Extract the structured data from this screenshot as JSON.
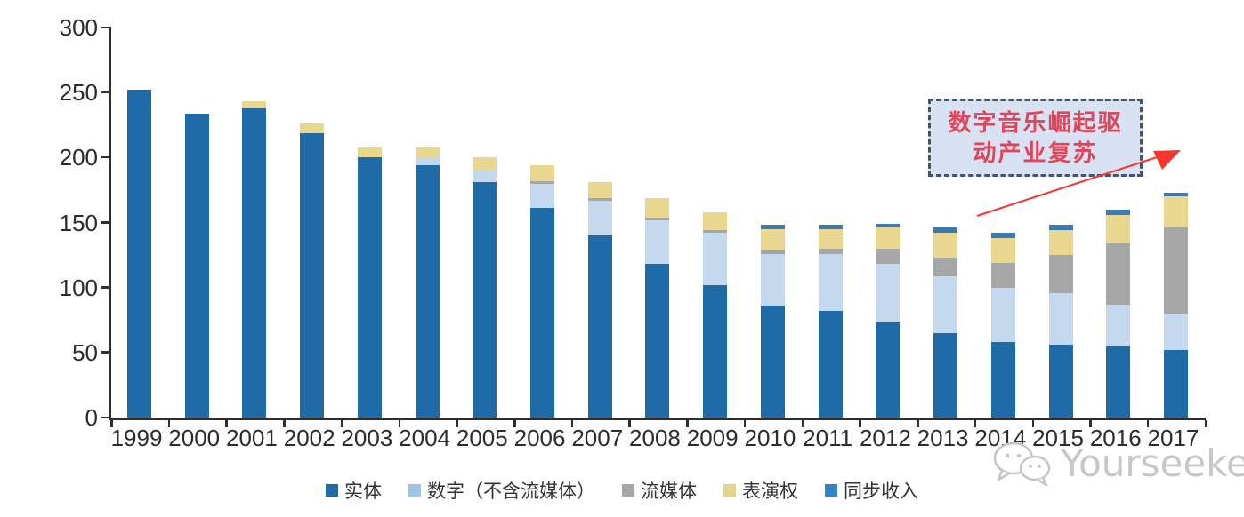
{
  "chart_data": {
    "type": "bar",
    "stacked": true,
    "title": "",
    "xlabel": "",
    "ylabel": "",
    "ylim": [
      0,
      300
    ],
    "yticks": [
      0,
      50,
      100,
      150,
      200,
      250,
      300
    ],
    "grid": false,
    "legend_position": "bottom",
    "years": [
      "1999",
      "2000",
      "2001",
      "2002",
      "2003",
      "2004",
      "2005",
      "2006",
      "2007",
      "2008",
      "2009",
      "2010",
      "2011",
      "2012",
      "2013",
      "2014",
      "2015",
      "2016",
      "2017"
    ],
    "series": [
      {
        "key": "physical",
        "name": "实体",
        "color": "#1f6ba8",
        "legend_color": "#1f6ba8",
        "values": [
          252,
          234,
          238,
          219,
          200,
          194,
          181,
          161,
          140,
          118,
          102,
          86,
          82,
          73,
          65,
          58,
          56,
          55,
          52
        ]
      },
      {
        "key": "digital-excl-streaming",
        "name": "数字（不含流媒体）",
        "color": "#c5d9ee",
        "legend_color": "#9dc3e6",
        "values": [
          0,
          0,
          0,
          0,
          0,
          6,
          10,
          19,
          27,
          34,
          40,
          40,
          44,
          45,
          44,
          42,
          40,
          32,
          28
        ]
      },
      {
        "key": "streaming",
        "name": "流媒体",
        "color": "#a6a6a6",
        "legend_color": "#a6a6a6",
        "values": [
          0,
          0,
          0,
          0,
          0,
          0,
          0,
          2,
          2,
          2,
          2,
          3,
          4,
          12,
          14,
          19,
          29,
          47,
          66
        ]
      },
      {
        "key": "performance-rights",
        "name": "表演权",
        "color": "#e9d78f",
        "legend_color": "#e4d48c",
        "values": [
          0,
          0,
          5,
          7,
          8,
          8,
          9,
          12,
          12,
          15,
          14,
          16,
          15,
          16,
          19,
          19,
          19,
          22,
          24
        ]
      },
      {
        "key": "sync-revenue",
        "name": "同步收入",
        "color": "#3d7ab5",
        "legend_color": "#2e86c6",
        "values": [
          0,
          0,
          0,
          0,
          0,
          0,
          0,
          0,
          0,
          0,
          0,
          3,
          3,
          3,
          4,
          4,
          4,
          4,
          3
        ]
      }
    ]
  },
  "annotation": {
    "line1": "数字音乐崛起驱",
    "line2": "动产业复苏",
    "box_fill": "#d9e2f2",
    "border_color": "#44546a",
    "text_color": "#e0455a",
    "arrow_color": "#f8342e"
  },
  "watermark": {
    "text": "Yourseeker",
    "icon": "wechat-icon",
    "color": "#c7c7c7"
  }
}
